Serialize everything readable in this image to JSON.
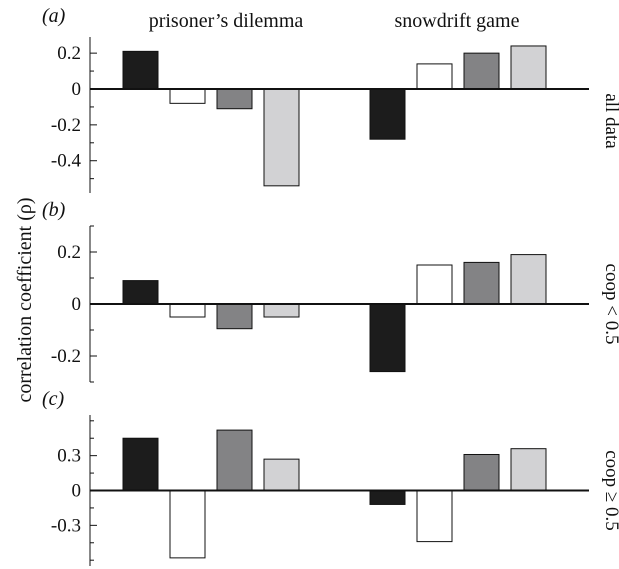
{
  "ylabel": "correlation coefficient (ρ)",
  "groups": [
    "prisoner’s dilemma",
    "snowdrift game"
  ],
  "colors": {
    "fills": [
      "#1c1c1c",
      "#ffffff",
      "#838385",
      "#d2d2d4"
    ],
    "stroke": "#111111"
  },
  "chart_data": [
    {
      "type": "bar",
      "panel_label": "(a)",
      "side_label": "all data",
      "categories": [
        "prisoner’s dilemma",
        "snowdrift game"
      ],
      "series": [
        {
          "values": [
            0.21,
            -0.28
          ]
        },
        {
          "values": [
            -0.08,
            0.14
          ]
        },
        {
          "values": [
            -0.11,
            0.2
          ]
        },
        {
          "values": [
            -0.54,
            0.24
          ]
        }
      ],
      "ylim": [
        -0.58,
        0.29
      ],
      "yticks": [
        -0.4,
        -0.2,
        0,
        0.2
      ],
      "ytick_labels": [
        "-0.4",
        "-0.2",
        "0",
        "0.2"
      ]
    },
    {
      "type": "bar",
      "panel_label": "(b)",
      "side_label": "coop < 0.5",
      "categories": [
        "prisoner’s dilemma",
        "snowdrift game"
      ],
      "series": [
        {
          "values": [
            0.09,
            -0.26
          ]
        },
        {
          "values": [
            -0.05,
            0.15
          ]
        },
        {
          "values": [
            -0.095,
            0.16
          ]
        },
        {
          "values": [
            -0.05,
            0.19
          ]
        }
      ],
      "ylim": [
        -0.3,
        0.3
      ],
      "yticks": [
        -0.2,
        0,
        0.2
      ],
      "ytick_labels": [
        "-0.2",
        "0",
        "0.2"
      ]
    },
    {
      "type": "bar",
      "panel_label": "(c)",
      "side_label": "coop ≥ 0.5",
      "categories": [
        "prisoner’s dilemma",
        "snowdrift game"
      ],
      "series": [
        {
          "values": [
            0.45,
            -0.12
          ]
        },
        {
          "values": [
            -0.58,
            -0.44
          ]
        },
        {
          "values": [
            0.52,
            0.31
          ]
        },
        {
          "values": [
            0.27,
            0.36
          ]
        }
      ],
      "ylim": [
        -0.65,
        0.65
      ],
      "yticks": [
        -0.3,
        0,
        0.3
      ],
      "ytick_labels": [
        "-0.3",
        "0",
        "0.3"
      ]
    }
  ]
}
